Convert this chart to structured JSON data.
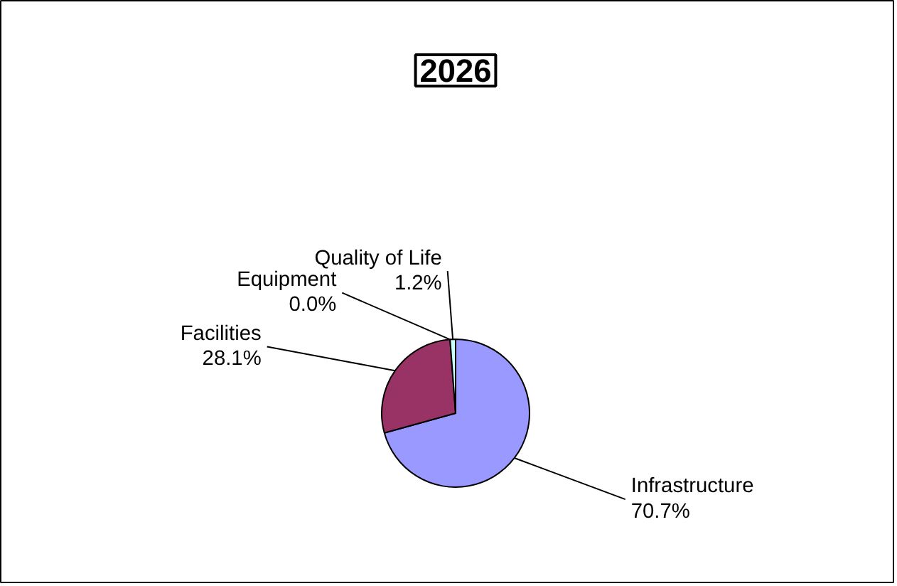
{
  "chart_data": {
    "type": "pie",
    "title": "2026",
    "categories": [
      "Infrastructure",
      "Facilities",
      "Equipment",
      "Quality of Life"
    ],
    "values": [
      70.7,
      28.1,
      0.0,
      1.2
    ],
    "value_labels": [
      "70.7%",
      "28.1%",
      "0.0%",
      "1.2%"
    ],
    "colors": [
      "#9999ff",
      "#993366",
      "#ffffcc",
      "#ccffff"
    ]
  }
}
